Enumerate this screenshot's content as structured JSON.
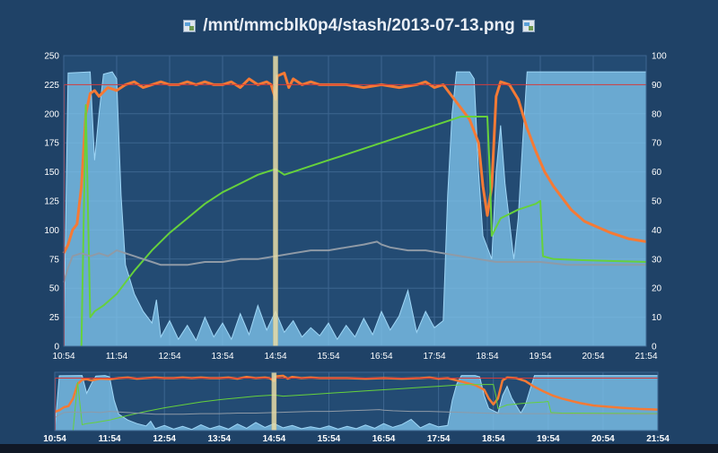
{
  "title": "/mnt/mmcblk0p4/stash/2013-07-13.png",
  "icons": {
    "left": "image-file-icon",
    "right": "image-file-icon"
  },
  "colors": {
    "background": "#1f4267",
    "plot_bg": "#234b73",
    "grid": "#3d6690",
    "axis_text": "#ffffff",
    "area_fill": "#7fc4ec",
    "area_line": "#9fd6f6",
    "orange": "#f57a35",
    "green": "#66d13c",
    "gray": "#8f9aa6",
    "red_line": "#d23a3a",
    "marker": "#e6dca8"
  },
  "chart_data": {
    "type": "line",
    "x_ticks": [
      "10:54",
      "11:54",
      "12:54",
      "13:54",
      "14:54",
      "15:54",
      "16:54",
      "17:54",
      "18:54",
      "19:54",
      "20:54",
      "21:54"
    ],
    "x_range": [
      "10:54",
      "21:54"
    ],
    "y_left": {
      "ticks": [
        0,
        25,
        50,
        75,
        100,
        125,
        150,
        175,
        200,
        225,
        250
      ],
      "ylim": [
        0,
        250
      ]
    },
    "y_right": {
      "ticks": [
        0,
        10,
        20,
        30,
        40,
        50,
        60,
        70,
        80,
        90,
        100
      ],
      "ylim": [
        0,
        100
      ]
    },
    "grid": true,
    "reference_line": {
      "axis": "left",
      "value": 225
    },
    "marker_time": "14:54",
    "series": [
      {
        "axis": "left",
        "kind": "area",
        "points": [
          [
            "10:54",
            0
          ],
          [
            "10:59",
            235
          ],
          [
            "11:24",
            236
          ],
          [
            "11:29",
            160
          ],
          [
            "11:34",
            200
          ],
          [
            "11:39",
            234
          ],
          [
            "11:49",
            236
          ],
          [
            "11:54",
            230
          ],
          [
            "11:59",
            130
          ],
          [
            "12:04",
            70
          ],
          [
            "12:14",
            45
          ],
          [
            "12:24",
            30
          ],
          [
            "12:34",
            20
          ],
          [
            "12:39",
            40
          ],
          [
            "12:44",
            8
          ],
          [
            "12:54",
            22
          ],
          [
            "13:04",
            6
          ],
          [
            "13:14",
            18
          ],
          [
            "13:24",
            5
          ],
          [
            "13:34",
            25
          ],
          [
            "13:44",
            8
          ],
          [
            "13:54",
            20
          ],
          [
            "14:04",
            6
          ],
          [
            "14:14",
            28
          ],
          [
            "14:24",
            10
          ],
          [
            "14:34",
            35
          ],
          [
            "14:44",
            14
          ],
          [
            "14:54",
            30
          ],
          [
            "15:04",
            12
          ],
          [
            "15:14",
            22
          ],
          [
            "15:24",
            8
          ],
          [
            "15:34",
            16
          ],
          [
            "15:44",
            9
          ],
          [
            "15:54",
            20
          ],
          [
            "16:04",
            6
          ],
          [
            "16:14",
            18
          ],
          [
            "16:24",
            8
          ],
          [
            "16:34",
            24
          ],
          [
            "16:44",
            10
          ],
          [
            "16:54",
            30
          ],
          [
            "17:04",
            14
          ],
          [
            "17:14",
            26
          ],
          [
            "17:24",
            48
          ],
          [
            "17:34",
            12
          ],
          [
            "17:44",
            30
          ],
          [
            "17:54",
            16
          ],
          [
            "18:04",
            22
          ],
          [
            "18:09",
            130
          ],
          [
            "18:14",
            200
          ],
          [
            "18:19",
            236
          ],
          [
            "18:34",
            236
          ],
          [
            "18:39",
            230
          ],
          [
            "18:44",
            150
          ],
          [
            "18:49",
            95
          ],
          [
            "18:59",
            75
          ],
          [
            "19:04",
            150
          ],
          [
            "19:09",
            190
          ],
          [
            "19:14",
            140
          ],
          [
            "19:24",
            75
          ],
          [
            "19:29",
            110
          ],
          [
            "19:34",
            175
          ],
          [
            "19:39",
            236
          ],
          [
            "21:54",
            236
          ]
        ]
      },
      {
        "axis": "right",
        "kind": "line",
        "color": "orange",
        "points": [
          [
            "10:54",
            32
          ],
          [
            "10:59",
            35
          ],
          [
            "11:04",
            40
          ],
          [
            "11:09",
            42
          ],
          [
            "11:14",
            55
          ],
          [
            "11:19",
            80
          ],
          [
            "11:24",
            87
          ],
          [
            "11:29",
            88
          ],
          [
            "11:34",
            86
          ],
          [
            "11:44",
            89
          ],
          [
            "11:54",
            88
          ],
          [
            "12:04",
            90
          ],
          [
            "12:14",
            91
          ],
          [
            "12:24",
            89
          ],
          [
            "12:34",
            90
          ],
          [
            "12:44",
            91
          ],
          [
            "12:54",
            90
          ],
          [
            "13:04",
            90
          ],
          [
            "13:14",
            91
          ],
          [
            "13:24",
            90
          ],
          [
            "13:34",
            91
          ],
          [
            "13:44",
            90
          ],
          [
            "13:54",
            90
          ],
          [
            "14:04",
            91
          ],
          [
            "14:14",
            89
          ],
          [
            "14:24",
            92
          ],
          [
            "14:34",
            90
          ],
          [
            "14:44",
            91
          ],
          [
            "14:49",
            90
          ],
          [
            "14:54",
            85
          ],
          [
            "14:56",
            93
          ],
          [
            "15:04",
            94
          ],
          [
            "15:09",
            89
          ],
          [
            "15:14",
            92
          ],
          [
            "15:24",
            90
          ],
          [
            "15:34",
            91
          ],
          [
            "15:44",
            90
          ],
          [
            "15:54",
            90
          ],
          [
            "16:14",
            90
          ],
          [
            "16:34",
            89
          ],
          [
            "16:54",
            90
          ],
          [
            "17:14",
            89
          ],
          [
            "17:34",
            90
          ],
          [
            "17:44",
            91
          ],
          [
            "17:54",
            89
          ],
          [
            "18:04",
            90
          ],
          [
            "18:14",
            86
          ],
          [
            "18:24",
            82
          ],
          [
            "18:34",
            78
          ],
          [
            "18:44",
            70
          ],
          [
            "18:49",
            55
          ],
          [
            "18:54",
            45
          ],
          [
            "18:59",
            55
          ],
          [
            "19:04",
            86
          ],
          [
            "19:09",
            91
          ],
          [
            "19:19",
            90
          ],
          [
            "19:29",
            85
          ],
          [
            "19:39",
            75
          ],
          [
            "19:49",
            67
          ],
          [
            "19:59",
            60
          ],
          [
            "20:09",
            55
          ],
          [
            "20:19",
            51
          ],
          [
            "20:29",
            47
          ],
          [
            "20:44",
            43
          ],
          [
            "20:59",
            41
          ],
          [
            "21:14",
            39
          ],
          [
            "21:34",
            37
          ],
          [
            "21:54",
            36
          ]
        ]
      },
      {
        "axis": "right",
        "kind": "line",
        "color": "green",
        "points": [
          [
            "11:14",
            0
          ],
          [
            "11:19",
            83
          ],
          [
            "11:24",
            10
          ],
          [
            "11:29",
            12
          ],
          [
            "11:39",
            14
          ],
          [
            "11:54",
            18
          ],
          [
            "12:14",
            26
          ],
          [
            "12:34",
            33
          ],
          [
            "12:54",
            39
          ],
          [
            "13:14",
            44
          ],
          [
            "13:34",
            49
          ],
          [
            "13:54",
            53
          ],
          [
            "14:14",
            56
          ],
          [
            "14:34",
            59
          ],
          [
            "14:54",
            61
          ],
          [
            "14:59",
            60
          ],
          [
            "15:04",
            59
          ],
          [
            "15:14",
            60
          ],
          [
            "15:34",
            62
          ],
          [
            "15:54",
            64
          ],
          [
            "16:14",
            66
          ],
          [
            "16:34",
            68
          ],
          [
            "16:54",
            70
          ],
          [
            "17:14",
            72
          ],
          [
            "17:34",
            74
          ],
          [
            "17:54",
            76
          ],
          [
            "18:14",
            78
          ],
          [
            "18:24",
            79
          ],
          [
            "18:34",
            79
          ],
          [
            "18:54",
            79
          ],
          [
            "18:57",
            58
          ],
          [
            "18:59",
            38
          ],
          [
            "19:09",
            44
          ],
          [
            "19:29",
            47
          ],
          [
            "19:49",
            49
          ],
          [
            "19:54",
            50
          ],
          [
            "19:57",
            31
          ],
          [
            "20:09",
            30
          ],
          [
            "20:54",
            29.5
          ],
          [
            "21:54",
            29
          ]
        ]
      },
      {
        "axis": "right",
        "kind": "line",
        "color": "gray",
        "points": [
          [
            "10:54",
            22
          ],
          [
            "10:59",
            27
          ],
          [
            "11:04",
            31
          ],
          [
            "11:14",
            32
          ],
          [
            "11:24",
            31
          ],
          [
            "11:34",
            32
          ],
          [
            "11:44",
            31
          ],
          [
            "11:54",
            33
          ],
          [
            "12:04",
            32
          ],
          [
            "12:14",
            31
          ],
          [
            "12:24",
            30
          ],
          [
            "12:34",
            29
          ],
          [
            "12:44",
            28
          ],
          [
            "12:54",
            28
          ],
          [
            "13:14",
            28
          ],
          [
            "13:34",
            29
          ],
          [
            "13:54",
            29
          ],
          [
            "14:14",
            30
          ],
          [
            "14:34",
            30
          ],
          [
            "14:54",
            31
          ],
          [
            "15:14",
            32
          ],
          [
            "15:34",
            33
          ],
          [
            "15:54",
            33
          ],
          [
            "16:14",
            34
          ],
          [
            "16:34",
            35
          ],
          [
            "16:49",
            36
          ],
          [
            "16:54",
            35
          ],
          [
            "17:04",
            34
          ],
          [
            "17:24",
            33
          ],
          [
            "17:44",
            33
          ],
          [
            "18:04",
            32
          ],
          [
            "18:24",
            31
          ],
          [
            "18:44",
            30
          ],
          [
            "19:04",
            29
          ],
          [
            "19:24",
            29
          ],
          [
            "19:54",
            29
          ],
          [
            "20:24",
            28
          ],
          [
            "20:54",
            28
          ],
          [
            "21:24",
            28
          ],
          [
            "21:54",
            28
          ]
        ]
      }
    ]
  },
  "overview": {
    "x_ticks": [
      "10:54",
      "11:54",
      "12:54",
      "13:54",
      "14:54",
      "15:54",
      "16:54",
      "17:54",
      "18:54",
      "19:54",
      "20:54",
      "21:54"
    ]
  }
}
